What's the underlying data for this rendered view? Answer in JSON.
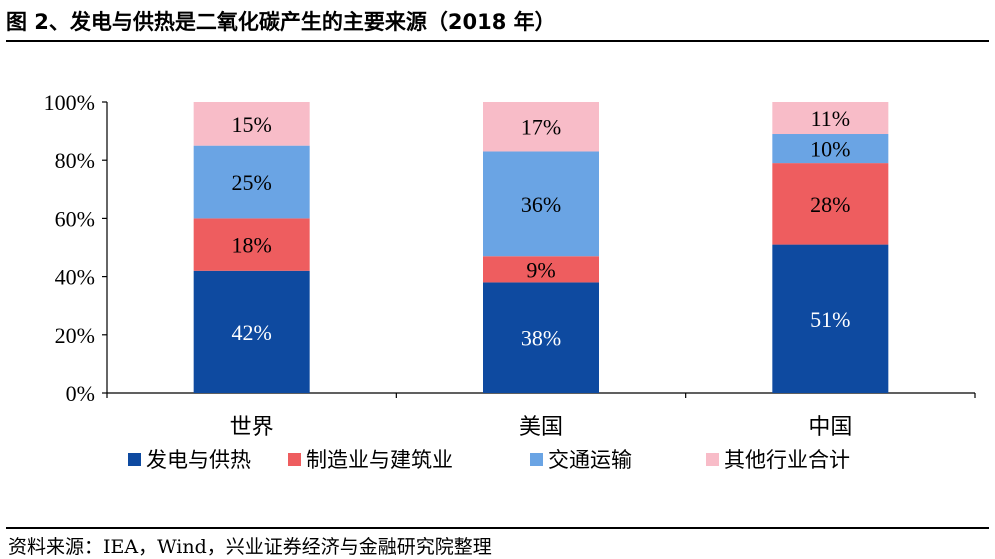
{
  "title": "图 2、发电与供热是二氧化碳产生的主要来源（2018 年）",
  "source": "资料来源：IEA，Wind，兴业证券经济与金融研究院整理",
  "chart_data": {
    "type": "bar",
    "stacked": true,
    "categories": [
      "世界",
      "美国",
      "中国"
    ],
    "series": [
      {
        "name": "发电与供热",
        "values": [
          42,
          38,
          51
        ],
        "labels": [
          "42%",
          "38%",
          "51%"
        ],
        "color": "#0e4aa0",
        "label_color": "#ffffff"
      },
      {
        "name": "制造业与建筑业",
        "values": [
          18,
          9,
          28
        ],
        "labels": [
          "18%",
          "9%",
          "28%"
        ],
        "color": "#ee5d5f",
        "label_color": "#000000"
      },
      {
        "name": "交通运输",
        "values": [
          25,
          36,
          10
        ],
        "labels": [
          "25%",
          "36%",
          "10%"
        ],
        "color": "#6aa4e4",
        "label_color": "#000000"
      },
      {
        "name": "其他行业合计",
        "values": [
          15,
          17,
          11
        ],
        "labels": [
          "15%",
          "17%",
          "11%"
        ],
        "color": "#f8bcc8",
        "label_color": "#000000"
      }
    ],
    "ylim": [
      0,
      100
    ],
    "yticks": [
      "0%",
      "20%",
      "40%",
      "60%",
      "80%",
      "100%"
    ],
    "legend_position": "bottom",
    "grid": false
  }
}
